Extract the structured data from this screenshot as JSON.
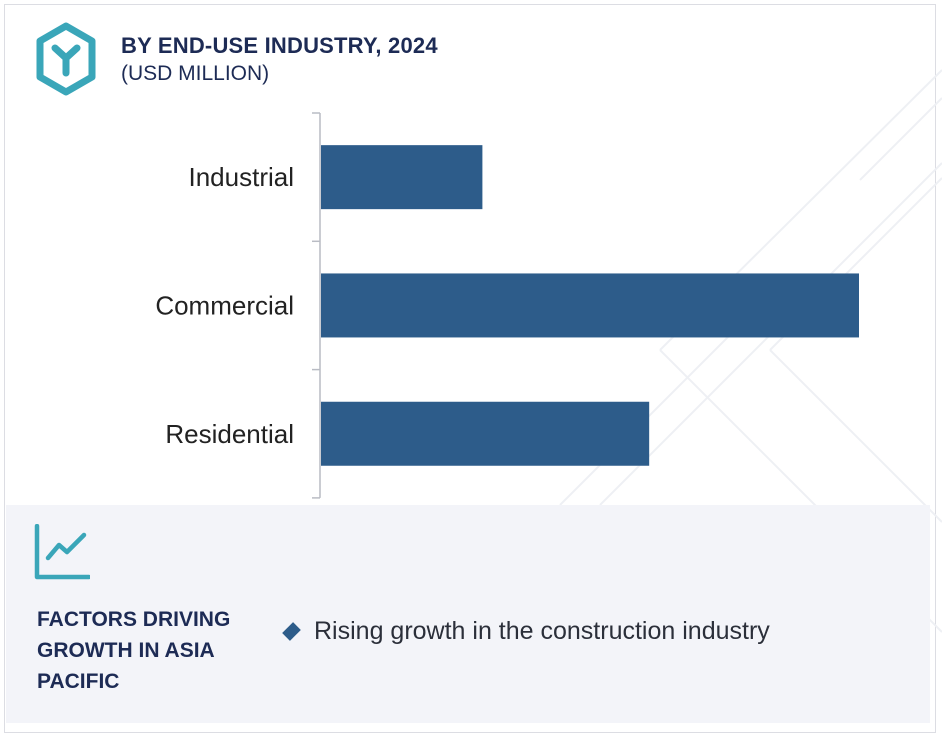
{
  "header": {
    "logo_icon": "hexagon-y-logo-icon",
    "title": "BY END-USE INDUSTRY, 2024",
    "subtitle": "(USD MILLION)"
  },
  "chart_data": {
    "type": "bar",
    "orientation": "horizontal",
    "categories": [
      "Industrial",
      "Commercial",
      "Residential"
    ],
    "values": [
      30,
      100,
      61
    ],
    "title": "BY END-USE INDUSTRY, 2024",
    "subtitle": "(USD MILLION)",
    "xlabel": "",
    "ylabel": "",
    "xlim": [
      0,
      100
    ],
    "value_axis_visible": false,
    "grid": false,
    "legend": "none",
    "bar_color": "#2d5c8a"
  },
  "factors": {
    "icon": "line-chart-trend-icon",
    "heading": "FACTORS DRIVING GROWTH IN ASIA PACIFIC",
    "items": [
      "Rising growth in the construction industry"
    ]
  },
  "colors": {
    "accent": "#3aa6b9",
    "navy": "#1d2b55",
    "bar": "#2d5c8a",
    "panel": "#f3f4f9"
  }
}
